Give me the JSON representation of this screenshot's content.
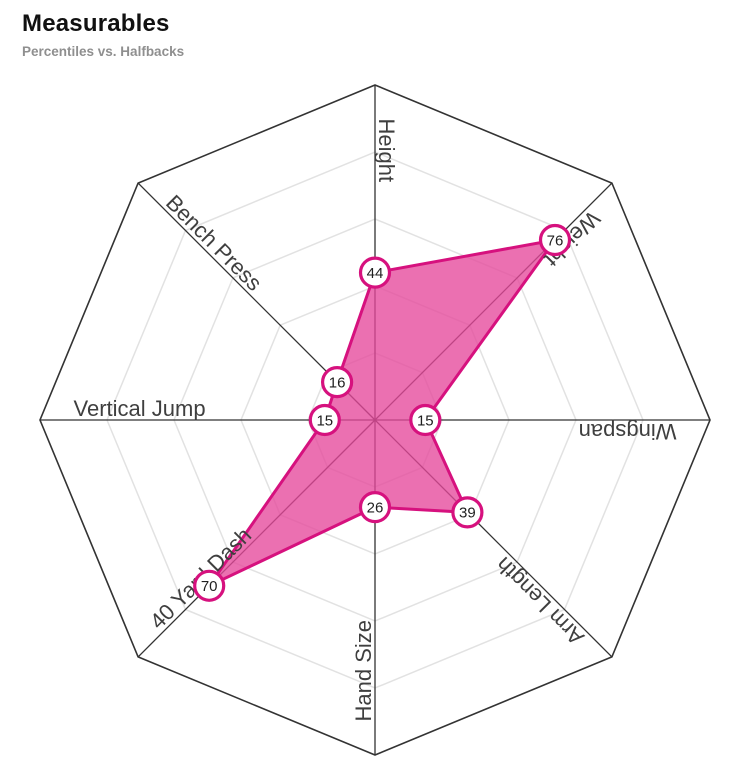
{
  "header": {
    "title": "Measurables",
    "subtitle": "Percentiles vs. Halfbacks"
  },
  "chart_data": {
    "type": "radar",
    "title": "Measurables",
    "subtitle": "Percentiles vs. Halfbacks",
    "axes": [
      "Height",
      "Weight",
      "Wingspan",
      "Arm Length",
      "Hand Size",
      "40 Yard Dash",
      "Vertical Jump",
      "Bench Press"
    ],
    "values": [
      44,
      76,
      15,
      39,
      26,
      70,
      15,
      16
    ],
    "scale": {
      "min": 0,
      "max": 100,
      "rings": 5
    },
    "layout": {
      "start_axis": "top",
      "direction": "clockwise",
      "grid": "octagon",
      "legend": "none"
    },
    "colors": {
      "fill": "#e6489b",
      "fill_opacity": "0.78",
      "stroke": "#d6117e",
      "marker_fill": "#ffffff",
      "marker_stroke": "#d6117e",
      "marker_text": "#1f1f1f",
      "grid": "#e2e2e2",
      "axis_line": "#333333",
      "label": "#3f3f3f"
    }
  }
}
